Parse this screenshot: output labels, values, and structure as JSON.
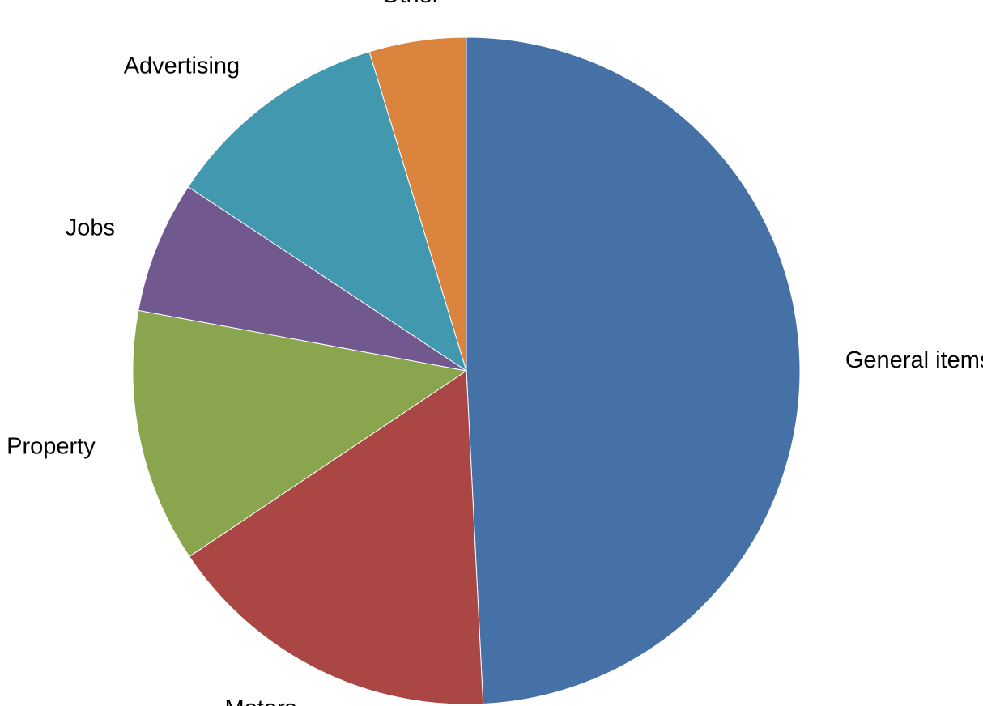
{
  "chart_data": {
    "type": "pie",
    "categories": [
      "General items",
      "Motors",
      "Property",
      "Jobs",
      "Advertising",
      "Other"
    ],
    "values": [
      49.2,
      16.4,
      12.3,
      6.4,
      11,
      4.7
    ],
    "colors": [
      "#4571a6",
      "#aa4644",
      "#89a54e",
      "#71588f",
      "#4198af",
      "#db843d"
    ]
  }
}
